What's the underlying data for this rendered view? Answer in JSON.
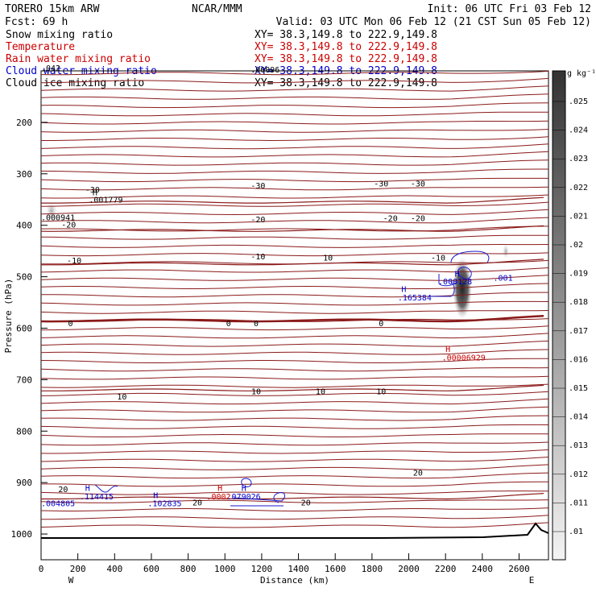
{
  "header": {
    "model": "TORERO  15km ARW",
    "center": "NCAR/MMM",
    "init": "Init: 06 UTC Fri 03 Feb 12",
    "fcst": "Fcst:   69 h",
    "valid": "Valid: 03 UTC Mon 06 Feb 12 (21 CST Sun 05 Feb 12)"
  },
  "legend": [
    {
      "name": "Snow mixing ratio",
      "xy": "XY=  38.3,149.8 to 222.9,149.8",
      "color": "#000000"
    },
    {
      "name": "Temperature",
      "xy": "XY=  38.3,149.8 to 222.9,149.8",
      "color": "#cc0000"
    },
    {
      "name": "Rain water mixing ratio",
      "xy": "XY=  38.3,149.8 to 222.9,149.8",
      "color": "#cc0000"
    },
    {
      "name": "Cloud water mixing ratio",
      "xy": "XY=  38.3,149.8 to 222.9,149.8",
      "color": "#0000cc"
    },
    {
      "name": "Cloud ice mixing ratio",
      "xy": "XY=  38.3,149.8 to 222.9,149.8",
      "color": "#000000"
    }
  ],
  "colors": {
    "temperature": "#8b1a1a",
    "cloud_water": "#1a1acc",
    "rain": "#cc0000",
    "terrain": "#000000"
  },
  "chart_data": {
    "type": "contour-cross-section",
    "xlabel": "Distance (km)",
    "ylabel": "Pressure (hPa)",
    "xlim": [
      0,
      2760
    ],
    "ylim": [
      1050,
      100
    ],
    "x_ticks": [
      0,
      200,
      400,
      600,
      800,
      1000,
      1200,
      1400,
      1600,
      1800,
      2000,
      2200,
      2400,
      2600
    ],
    "y_ticks": [
      200,
      300,
      400,
      500,
      600,
      700,
      800,
      900,
      1000
    ],
    "left_end": "W",
    "right_end": "E",
    "colorbar": {
      "unit": "g kg⁻¹",
      "ticks": [
        ".025",
        ".024",
        ".023",
        ".022",
        ".021",
        ".02",
        ".019",
        ".018",
        ".017",
        ".016",
        ".015",
        ".014",
        ".013",
        ".012",
        ".011",
        ".01"
      ]
    },
    "isotherms": [
      {
        "label": "-30",
        "p": 355
      },
      {
        "label": "-20",
        "p": 410
      },
      {
        "label": "-10",
        "p": 475
      },
      {
        "label": "0",
        "p": 585
      },
      {
        "label": "10",
        "p": 720
      },
      {
        "label": "20",
        "p": 930
      }
    ],
    "isotherm_labels": [
      {
        "text": "-30",
        "x": 280,
        "p": 330
      },
      {
        "text": "-30",
        "x": 1180,
        "p": 322
      },
      {
        "text": "-30",
        "x": 1850,
        "p": 318
      },
      {
        "text": "-30",
        "x": 2050,
        "p": 318
      },
      {
        "text": "-20",
        "x": 150,
        "p": 398
      },
      {
        "text": "-20",
        "x": 1180,
        "p": 388
      },
      {
        "text": "-20",
        "x": 1900,
        "p": 386
      },
      {
        "text": "-20",
        "x": 2050,
        "p": 386
      },
      {
        "text": "-10",
        "x": 180,
        "p": 468
      },
      {
        "text": "-10",
        "x": 1180,
        "p": 460
      },
      {
        "text": "10",
        "x": 1560,
        "p": 462
      },
      {
        "text": "-10",
        "x": 2160,
        "p": 462
      },
      {
        "text": "0",
        "x": 160,
        "p": 590
      },
      {
        "text": "0",
        "x": 1020,
        "p": 590
      },
      {
        "text": "0",
        "x": 1170,
        "p": 590
      },
      {
        "text": "0",
        "x": 1850,
        "p": 590
      },
      {
        "text": "10",
        "x": 440,
        "p": 732
      },
      {
        "text": "10",
        "x": 1170,
        "p": 722
      },
      {
        "text": "10",
        "x": 1520,
        "p": 722
      },
      {
        "text": "10",
        "x": 1850,
        "p": 722
      },
      {
        "text": "20",
        "x": 120,
        "p": 912
      },
      {
        "text": "20",
        "x": 850,
        "p": 938
      },
      {
        "text": "20",
        "x": 1440,
        "p": 938
      },
      {
        "text": "20",
        "x": 2050,
        "p": 880
      }
    ],
    "annotations": [
      {
        "text": "H",
        "x": 280,
        "p": 342,
        "color": "#000000"
      },
      {
        "text": ".001779",
        "x": 260,
        "p": 356,
        "color": "#000000"
      },
      {
        "text": ".000941",
        "x": 0,
        "p": 390,
        "color": "#000000"
      },
      {
        "text": ".00096",
        "x": 1140,
        "p": 103,
        "color": "#000000"
      },
      {
        "text": ".042",
        "x": 0,
        "p": 100,
        "color": "#000000"
      },
      {
        "text": "H",
        "x": 2250,
        "p": 500,
        "color": "#0000cc"
      },
      {
        "text": ".000128",
        "x": 2160,
        "p": 515,
        "color": "#0000cc"
      },
      {
        "text": ".001",
        "x": 2460,
        "p": 508,
        "color": "#0000cc"
      },
      {
        "text": "H",
        "x": 1960,
        "p": 530,
        "color": "#0000cc"
      },
      {
        "text": ".165384",
        "x": 1940,
        "p": 546,
        "color": "#0000cc"
      },
      {
        "text": "H",
        "x": 2200,
        "p": 646,
        "color": "#cc0000"
      },
      {
        "text": ".00006929",
        "x": 2180,
        "p": 663,
        "color": "#cc0000"
      },
      {
        "text": "H",
        "x": 240,
        "p": 916,
        "color": "#0000cc"
      },
      {
        "text": ".114415",
        "x": 210,
        "p": 933,
        "color": "#0000cc"
      },
      {
        "text": "H",
        "x": 610,
        "p": 930,
        "color": "#0000cc"
      },
      {
        "text": ".102835",
        "x": 580,
        "p": 946,
        "color": "#0000cc"
      },
      {
        "text": ".004805",
        "x": 0,
        "p": 946,
        "color": "#0000cc"
      },
      {
        "text": "H",
        "x": 960,
        "p": 916,
        "color": "#cc0000"
      },
      {
        "text": ".0002",
        "x": 900,
        "p": 933,
        "color": "#cc0000"
      },
      {
        "text": "H",
        "x": 1090,
        "p": 916,
        "color": "#0000cc"
      },
      {
        "text": ".079026",
        "x": 1010,
        "p": 933,
        "color": "#0000cc"
      }
    ]
  }
}
